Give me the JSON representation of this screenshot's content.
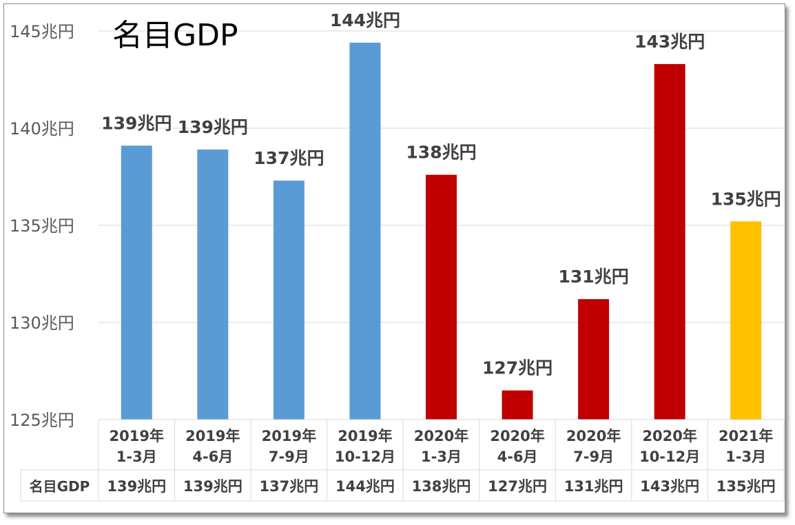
{
  "chart_data": {
    "type": "bar",
    "title": "名目GDP",
    "xlabel": "",
    "ylabel": "",
    "ylim": [
      125,
      145
    ],
    "yticks": [
      "125兆円",
      "130兆円",
      "135兆円",
      "140兆円",
      "145兆円"
    ],
    "ytick_values": [
      125,
      130,
      135,
      140,
      145
    ],
    "grid": true,
    "categories": [
      [
        "2019年",
        "1-3月"
      ],
      [
        "2019年",
        "4-6月"
      ],
      [
        "2019年",
        "7-9月"
      ],
      [
        "2019年",
        "10-12月"
      ],
      [
        "2020年",
        "1-3月"
      ],
      [
        "2020年",
        "4-6月"
      ],
      [
        "2020年",
        "7-9月"
      ],
      [
        "2020年",
        "10-12月"
      ],
      [
        "2021年",
        "1-3月"
      ]
    ],
    "series": [
      {
        "name": "名目GDP",
        "values": [
          139.1,
          138.9,
          137.3,
          144.4,
          137.6,
          126.5,
          131.2,
          143.3,
          135.2
        ],
        "labels": [
          "139兆円",
          "139兆円",
          "137兆円",
          "144兆円",
          "138兆円",
          "127兆円",
          "131兆円",
          "143兆円",
          "135兆円"
        ],
        "colors": [
          "#5b9bd5",
          "#5b9bd5",
          "#5b9bd5",
          "#5b9bd5",
          "#c00000",
          "#c00000",
          "#c00000",
          "#c00000",
          "#ffc000"
        ]
      }
    ],
    "data_table": {
      "row_header": "名目GDP"
    }
  }
}
